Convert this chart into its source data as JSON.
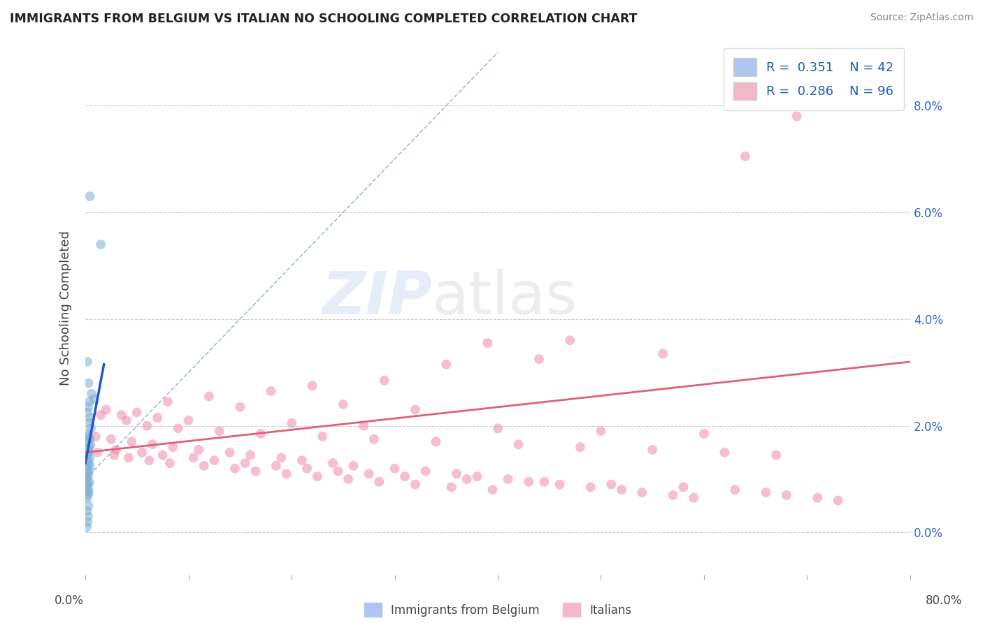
{
  "title": "IMMIGRANTS FROM BELGIUM VS ITALIAN NO SCHOOLING COMPLETED CORRELATION CHART",
  "source": "Source: ZipAtlas.com",
  "ylabel": "No Schooling Completed",
  "ytick_vals": [
    0.0,
    2.0,
    4.0,
    6.0,
    8.0
  ],
  "xlim": [
    0.0,
    80.0
  ],
  "ylim": [
    -0.8,
    9.2
  ],
  "legend_labels": [
    "Immigrants from Belgium",
    "Italians"
  ],
  "watermark_zip": "ZIP",
  "watermark_atlas": "atlas",
  "blue_scatter": [
    [
      0.45,
      6.3
    ],
    [
      1.5,
      5.4
    ],
    [
      0.2,
      3.2
    ],
    [
      0.3,
      2.8
    ],
    [
      0.6,
      2.6
    ],
    [
      0.85,
      2.5
    ],
    [
      0.4,
      2.45
    ],
    [
      0.28,
      2.35
    ],
    [
      0.22,
      2.25
    ],
    [
      0.48,
      2.15
    ],
    [
      0.35,
      2.05
    ],
    [
      0.55,
      1.95
    ],
    [
      0.18,
      1.85
    ],
    [
      0.32,
      1.8
    ],
    [
      0.42,
      1.75
    ],
    [
      0.25,
      1.7
    ],
    [
      0.5,
      1.65
    ],
    [
      0.38,
      1.6
    ],
    [
      0.28,
      1.55
    ],
    [
      0.35,
      1.5
    ],
    [
      0.15,
      1.45
    ],
    [
      0.46,
      1.4
    ],
    [
      0.22,
      1.35
    ],
    [
      0.32,
      1.3
    ],
    [
      0.42,
      1.25
    ],
    [
      0.18,
      1.2
    ],
    [
      0.36,
      1.15
    ],
    [
      0.26,
      1.1
    ],
    [
      0.22,
      1.05
    ],
    [
      0.15,
      1.0
    ],
    [
      0.38,
      0.95
    ],
    [
      0.3,
      0.9
    ],
    [
      0.18,
      0.85
    ],
    [
      0.26,
      0.8
    ],
    [
      0.34,
      0.75
    ],
    [
      0.22,
      0.7
    ],
    [
      0.15,
      0.65
    ],
    [
      0.3,
      0.5
    ],
    [
      0.18,
      0.4
    ],
    [
      0.26,
      0.3
    ],
    [
      0.22,
      0.2
    ],
    [
      0.15,
      0.1
    ]
  ],
  "pink_scatter": [
    [
      69.0,
      7.8
    ],
    [
      64.0,
      7.05
    ],
    [
      47.0,
      3.6
    ],
    [
      39.0,
      3.55
    ],
    [
      56.0,
      3.35
    ],
    [
      44.0,
      3.25
    ],
    [
      35.0,
      3.15
    ],
    [
      29.0,
      2.85
    ],
    [
      22.0,
      2.75
    ],
    [
      18.0,
      2.65
    ],
    [
      12.0,
      2.55
    ],
    [
      8.0,
      2.45
    ],
    [
      25.0,
      2.4
    ],
    [
      15.0,
      2.35
    ],
    [
      32.0,
      2.3
    ],
    [
      5.0,
      2.25
    ],
    [
      3.5,
      2.2
    ],
    [
      7.0,
      2.15
    ],
    [
      10.0,
      2.1
    ],
    [
      20.0,
      2.05
    ],
    [
      27.0,
      2.0
    ],
    [
      40.0,
      1.95
    ],
    [
      50.0,
      1.9
    ],
    [
      60.0,
      1.85
    ],
    [
      2.0,
      2.3
    ],
    [
      1.5,
      2.2
    ],
    [
      4.0,
      2.1
    ],
    [
      6.0,
      2.0
    ],
    [
      9.0,
      1.95
    ],
    [
      13.0,
      1.9
    ],
    [
      17.0,
      1.85
    ],
    [
      23.0,
      1.8
    ],
    [
      28.0,
      1.75
    ],
    [
      34.0,
      1.7
    ],
    [
      42.0,
      1.65
    ],
    [
      48.0,
      1.6
    ],
    [
      55.0,
      1.55
    ],
    [
      62.0,
      1.5
    ],
    [
      67.0,
      1.45
    ],
    [
      1.0,
      1.8
    ],
    [
      2.5,
      1.75
    ],
    [
      4.5,
      1.7
    ],
    [
      6.5,
      1.65
    ],
    [
      8.5,
      1.6
    ],
    [
      11.0,
      1.55
    ],
    [
      14.0,
      1.5
    ],
    [
      16.0,
      1.45
    ],
    [
      19.0,
      1.4
    ],
    [
      21.0,
      1.35
    ],
    [
      24.0,
      1.3
    ],
    [
      26.0,
      1.25
    ],
    [
      30.0,
      1.2
    ],
    [
      33.0,
      1.15
    ],
    [
      36.0,
      1.1
    ],
    [
      38.0,
      1.05
    ],
    [
      41.0,
      1.0
    ],
    [
      43.0,
      0.95
    ],
    [
      46.0,
      0.9
    ],
    [
      49.0,
      0.85
    ],
    [
      52.0,
      0.8
    ],
    [
      54.0,
      0.75
    ],
    [
      57.0,
      0.7
    ],
    [
      59.0,
      0.65
    ],
    [
      3.0,
      1.55
    ],
    [
      5.5,
      1.5
    ],
    [
      7.5,
      1.45
    ],
    [
      10.5,
      1.4
    ],
    [
      12.5,
      1.35
    ],
    [
      15.5,
      1.3
    ],
    [
      18.5,
      1.25
    ],
    [
      21.5,
      1.2
    ],
    [
      24.5,
      1.15
    ],
    [
      27.5,
      1.1
    ],
    [
      31.0,
      1.05
    ],
    [
      37.0,
      1.0
    ],
    [
      44.5,
      0.95
    ],
    [
      51.0,
      0.9
    ],
    [
      58.0,
      0.85
    ],
    [
      63.0,
      0.8
    ],
    [
      66.0,
      0.75
    ],
    [
      68.0,
      0.7
    ],
    [
      71.0,
      0.65
    ],
    [
      73.0,
      0.6
    ],
    [
      1.2,
      1.5
    ],
    [
      2.8,
      1.45
    ],
    [
      4.2,
      1.4
    ],
    [
      6.2,
      1.35
    ],
    [
      8.2,
      1.3
    ],
    [
      11.5,
      1.25
    ],
    [
      14.5,
      1.2
    ],
    [
      16.5,
      1.15
    ],
    [
      19.5,
      1.1
    ],
    [
      22.5,
      1.05
    ],
    [
      25.5,
      1.0
    ],
    [
      28.5,
      0.95
    ],
    [
      32.0,
      0.9
    ],
    [
      35.5,
      0.85
    ],
    [
      39.5,
      0.8
    ]
  ],
  "blue_solid_line": [
    [
      0.0,
      1.3
    ],
    [
      1.8,
      3.15
    ]
  ],
  "blue_dashed_line": [
    [
      0.0,
      1.0
    ],
    [
      40.0,
      9.0
    ]
  ],
  "pink_line": [
    [
      0.0,
      1.5
    ],
    [
      80.0,
      3.2
    ]
  ],
  "dot_size": 100,
  "bg_color": "#ffffff",
  "scatter_alpha": 0.55,
  "grid_color": "#cccccc",
  "title_color": "#222222",
  "source_color": "#888888"
}
